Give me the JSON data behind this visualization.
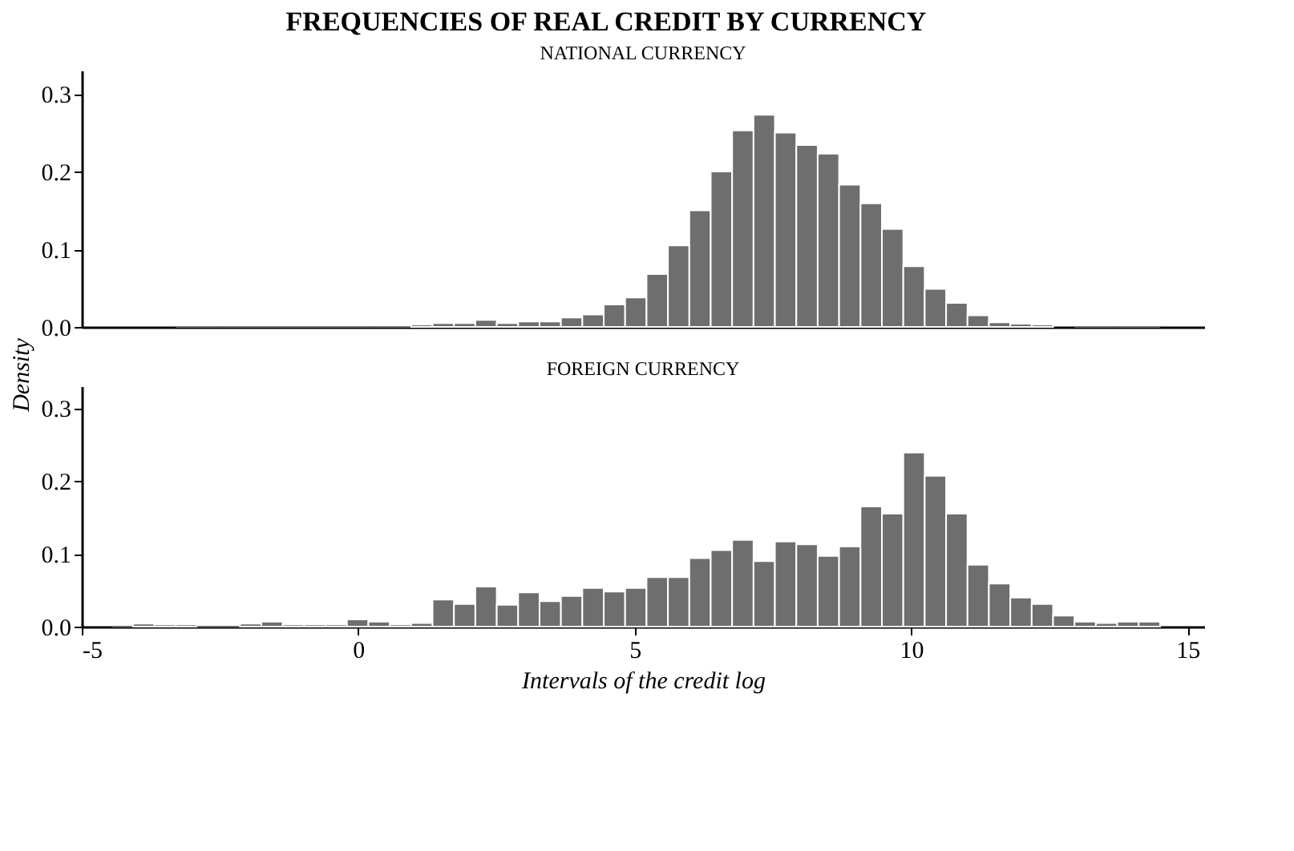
{
  "chart_data": [
    {
      "type": "histogram",
      "title": "FREQUENCIES OF REAL CREDIT BY CURRENCY",
      "subtitle": "NATIONAL CURRENCY",
      "ylabel": "Density",
      "color": "#6e6e6e",
      "grid": false,
      "tick_labels": "y",
      "bins": [
        -4.461,
        -4.074,
        -3.687,
        -3.3,
        -2.913,
        -2.526,
        -2.139,
        -1.752,
        -1.365,
        -0.978,
        -0.591,
        -0.204,
        0.183,
        0.57,
        0.957,
        1.344,
        1.731,
        2.118,
        2.505,
        2.892,
        3.279,
        3.666,
        4.053,
        4.44,
        4.827,
        5.214,
        5.601,
        5.988,
        6.375,
        6.762,
        7.149,
        7.536,
        7.923,
        8.31,
        8.697,
        9.084,
        9.471,
        9.858,
        10.245,
        10.632,
        11.019,
        11.406,
        11.793,
        12.18,
        12.567,
        12.954,
        13.341,
        13.728,
        14.115,
        14.502
      ],
      "values": [
        null,
        null,
        null,
        0,
        0,
        0,
        0,
        0,
        0,
        0,
        0,
        0,
        0,
        0,
        0.003,
        0.005,
        0.005,
        0.009,
        0.005,
        0.007,
        0.007,
        0.012,
        0.016,
        0.029,
        0.038,
        0.068,
        0.105,
        0.15,
        0.2,
        0.253,
        0.273,
        0.25,
        0.234,
        0.223,
        0.183,
        0.159,
        0.126,
        0.078,
        0.049,
        0.031,
        0.015,
        0.006,
        0.004,
        0.003,
        null,
        0,
        0,
        0,
        0
      ],
      "xlim": [
        -5,
        15.3
      ],
      "ylim": [
        0,
        0.33
      ],
      "yticks": [
        {
          "value": 0,
          "label": "0.0"
        },
        0.1,
        0.2,
        0.3
      ]
    },
    {
      "type": "histogram",
      "subtitle": "FOREIGN CURRENCY",
      "xlabel": "Intervals of the credit log",
      "color": "#6e6e6e",
      "grid": false,
      "bins": [
        -4.461,
        -4.074,
        -3.687,
        -3.3,
        -2.913,
        -2.526,
        -2.139,
        -1.752,
        -1.365,
        -0.978,
        -0.591,
        -0.204,
        0.183,
        0.57,
        0.957,
        1.344,
        1.731,
        2.118,
        2.505,
        2.892,
        3.279,
        3.666,
        4.053,
        4.44,
        4.827,
        5.214,
        5.601,
        5.988,
        6.375,
        6.762,
        7.149,
        7.536,
        7.923,
        8.31,
        8.697,
        9.084,
        9.471,
        9.858,
        10.245,
        10.632,
        11.019,
        11.406,
        11.793,
        12.18,
        12.567,
        12.954,
        13.341,
        13.728,
        14.115,
        14.502
      ],
      "values": [
        0,
        0.004,
        0.003,
        0.003,
        0,
        0,
        0.004,
        0.007,
        0.003,
        0.003,
        0.003,
        0.01,
        0.007,
        0.003,
        0.005,
        0.037,
        0.031,
        0.055,
        0.03,
        0.047,
        0.035,
        0.042,
        0.053,
        0.048,
        0.053,
        0.068,
        0.068,
        0.094,
        0.105,
        0.119,
        0.09,
        0.117,
        0.113,
        0.097,
        0.11,
        0.165,
        0.155,
        0.239,
        0.207,
        0.155,
        0.085,
        0.059,
        0.04,
        0.031,
        0.015,
        0.007,
        0.005,
        0.007,
        0.007
      ],
      "xlim": [
        -5,
        15.3
      ],
      "ylim": [
        0,
        0.33
      ],
      "xticks": [
        -5,
        0,
        5,
        10,
        15
      ],
      "yticks": [
        {
          "value": 0,
          "label": "0.0"
        },
        0.1,
        0.2,
        0.3
      ]
    }
  ]
}
